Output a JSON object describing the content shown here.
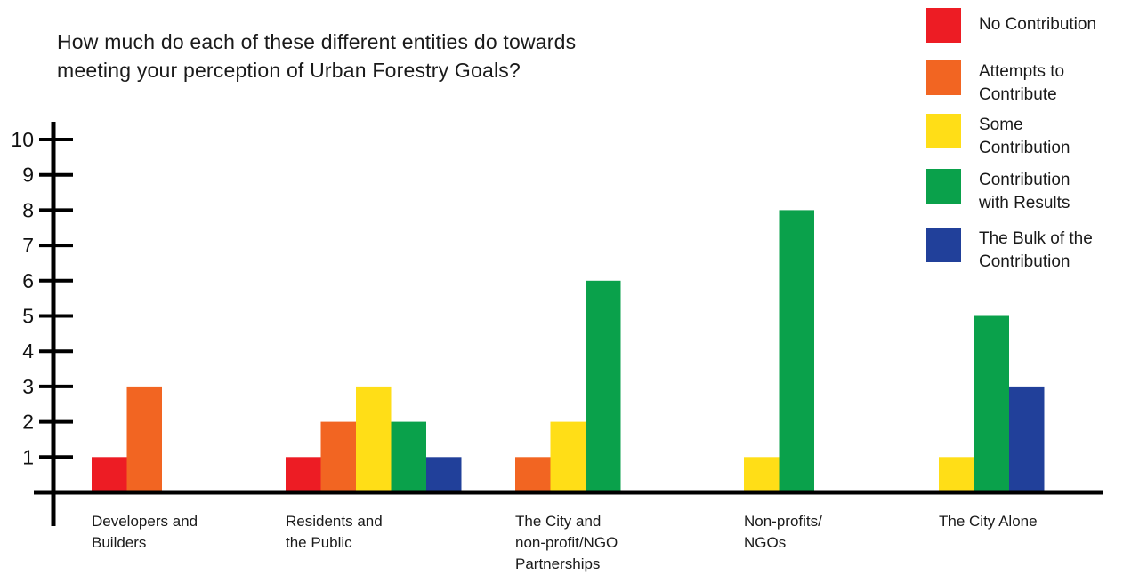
{
  "chart_data": {
    "type": "bar",
    "title_lines": [
      "How much do each of these different entities do towards",
      "meeting your perception of Urban Forestry Goals?"
    ],
    "xlabel": "",
    "ylabel": "",
    "ylim": [
      0,
      10
    ],
    "yticks": [
      "1",
      "2",
      "3",
      "4",
      "5",
      "6",
      "7",
      "8",
      "9",
      "10"
    ],
    "grid": false,
    "legend_position": "top-right",
    "categories": [
      "Developers and\nBuilders",
      "Residents and\nthe Public",
      "The City and\nnon-profit/NGO\nPartnerships",
      "Non-profits/\nNGOs",
      "The City Alone"
    ],
    "series": [
      {
        "name": "No Contribution",
        "color": "#ed1c24",
        "values": [
          1,
          1,
          0,
          0,
          0
        ]
      },
      {
        "name": "Attempts to\nContribute",
        "color": "#f26522",
        "values": [
          3,
          2,
          1,
          0,
          0
        ]
      },
      {
        "name": "Some\nContribution",
        "color": "#ffde17",
        "values": [
          0,
          3,
          2,
          1,
          1
        ]
      },
      {
        "name": "Contribution\nwith Results",
        "color": "#0aa14b",
        "values": [
          0,
          2,
          6,
          8,
          5
        ]
      },
      {
        "name": "The Bulk of the\nContribution",
        "color": "#21409a",
        "values": [
          0,
          1,
          0,
          0,
          3
        ]
      }
    ]
  }
}
